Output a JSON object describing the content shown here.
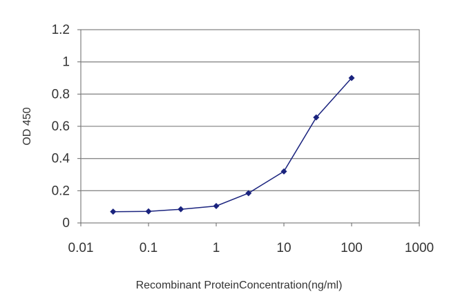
{
  "chart_data": {
    "type": "line",
    "title": "",
    "xlabel": "Recombinant ProteinConcentration(ng/ml)",
    "ylabel": "OD 450",
    "x_scale": "log",
    "xlim": [
      0.01,
      1000
    ],
    "ylim": [
      0,
      1.2
    ],
    "x_ticks": [
      0.01,
      0.1,
      1,
      10,
      100,
      1000
    ],
    "x_tick_labels": [
      "0.01",
      "0.1",
      "1",
      "10",
      "100",
      "1000"
    ],
    "y_ticks": [
      0,
      0.2,
      0.4,
      0.6,
      0.8,
      1,
      1.2
    ],
    "y_tick_labels": [
      "0",
      "0.2",
      "0.4",
      "0.6",
      "0.8",
      "1",
      "1.2"
    ],
    "grid": "horizontal",
    "legend": "none",
    "series": [
      {
        "color": "#1a237e",
        "x": [
          0.03,
          0.1,
          0.3,
          1,
          3,
          10,
          30,
          100
        ],
        "y": [
          0.07,
          0.072,
          0.085,
          0.105,
          0.185,
          0.32,
          0.655,
          0.9
        ]
      }
    ]
  }
}
